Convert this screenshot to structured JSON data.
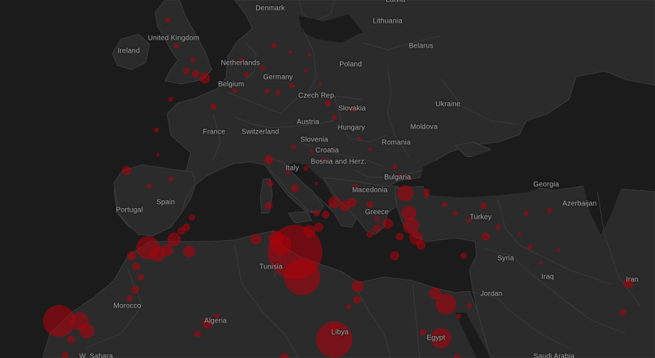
{
  "map": {
    "theme_colors": {
      "background": "#1c1c1c",
      "land": "#2b2b2b",
      "border": "#3d3d3d",
      "label": "#a6a6a6",
      "marker": "#b3000a"
    },
    "labels": [
      {
        "key": "denmark",
        "text": "Denmark"
      },
      {
        "key": "latvia",
        "text": "Latvia"
      },
      {
        "key": "lithuania",
        "text": "Lithuania"
      },
      {
        "key": "belarus",
        "text": "Belarus"
      },
      {
        "key": "united-kingdom",
        "text": "United Kingdom"
      },
      {
        "key": "ireland",
        "text": "Ireland"
      },
      {
        "key": "netherlands",
        "text": "Netherlands"
      },
      {
        "key": "germany",
        "text": "Germany"
      },
      {
        "key": "poland",
        "text": "Poland"
      },
      {
        "key": "belgium",
        "text": "Belgium"
      },
      {
        "key": "czech-rep",
        "text": "Czech Rep."
      },
      {
        "key": "slovakia",
        "text": "Slovakia"
      },
      {
        "key": "ukraine",
        "text": "Ukraine"
      },
      {
        "key": "france",
        "text": "France"
      },
      {
        "key": "switzerland",
        "text": "Switzerland"
      },
      {
        "key": "austria",
        "text": "Austria"
      },
      {
        "key": "hungary",
        "text": "Hungary"
      },
      {
        "key": "moldova",
        "text": "Moldova"
      },
      {
        "key": "slovenia",
        "text": "Slovenia"
      },
      {
        "key": "croatia",
        "text": "Croatia"
      },
      {
        "key": "romania",
        "text": "Romania"
      },
      {
        "key": "bosnia",
        "text": "Bosnia and Herz."
      },
      {
        "key": "italy",
        "text": "Italy"
      },
      {
        "key": "bulgaria",
        "text": "Bulgaria"
      },
      {
        "key": "georgia",
        "text": "Georgia"
      },
      {
        "key": "macedonia",
        "text": "Macedonia"
      },
      {
        "key": "spain",
        "text": "Spain"
      },
      {
        "key": "portugal",
        "text": "Portugal"
      },
      {
        "key": "greece",
        "text": "Greece"
      },
      {
        "key": "turkey",
        "text": "Turkey"
      },
      {
        "key": "azerbaijan",
        "text": "Azerbaijan"
      },
      {
        "key": "tunisia",
        "text": "Tunisia"
      },
      {
        "key": "syria",
        "text": "Syria"
      },
      {
        "key": "iraq",
        "text": "Iraq"
      },
      {
        "key": "iran",
        "text": "Iran"
      },
      {
        "key": "morocco",
        "text": "Morocco"
      },
      {
        "key": "jordan",
        "text": "Jordan"
      },
      {
        "key": "algeria",
        "text": "Algeria"
      },
      {
        "key": "libya",
        "text": "Libya"
      },
      {
        "key": "egypt",
        "text": "Egypt"
      },
      {
        "key": "w-sahara",
        "text": "W. Sahara"
      },
      {
        "key": "saudi-arabia",
        "text": "Saudi Arabia"
      }
    ]
  }
}
